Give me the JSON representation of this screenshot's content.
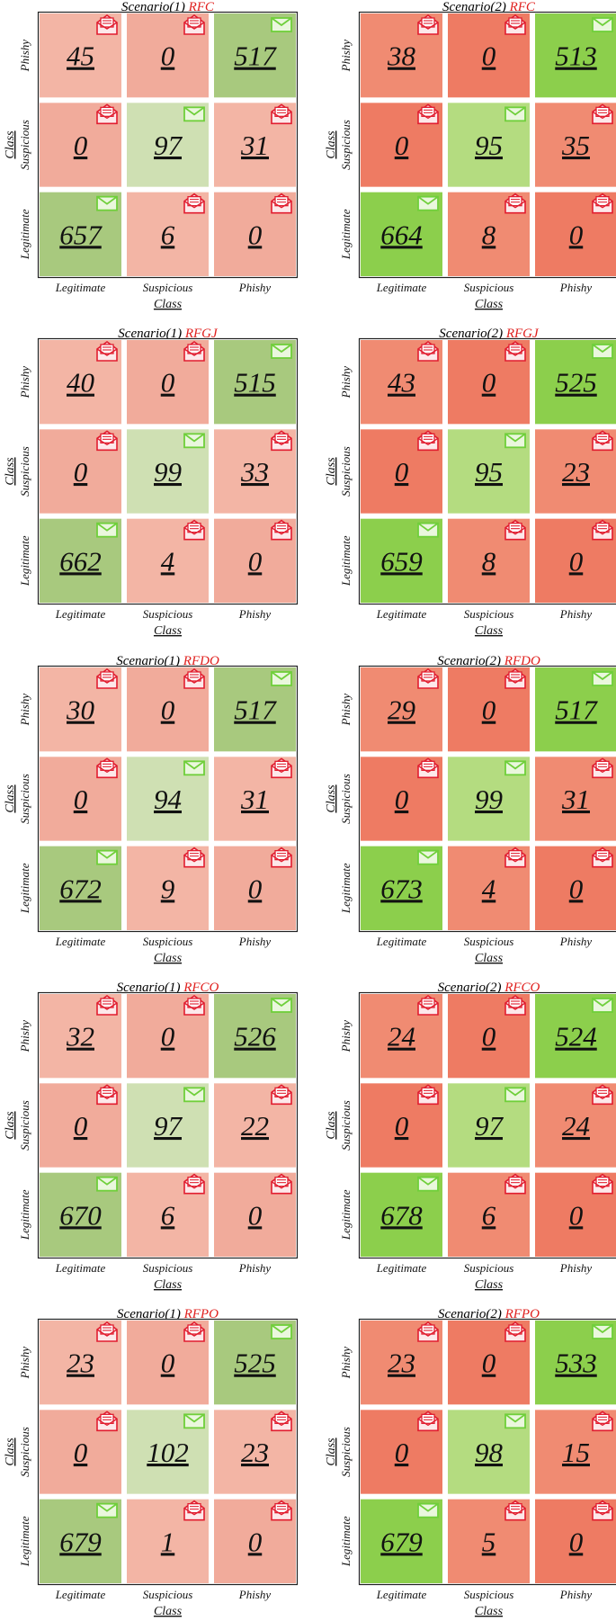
{
  "chart_data": [
    {
      "type": "heatmap",
      "title_prefix": "Scenario(1) ",
      "title_model": "RFC",
      "x_categories": [
        "Legitimate",
        "Suspicious",
        "Phishy"
      ],
      "y_categories": [
        "Phishy",
        "Suspicious",
        "Legitimate"
      ],
      "xlabel": "Class",
      "ylabel": "Class",
      "matrix": [
        [
          45,
          0,
          517
        ],
        [
          0,
          97,
          31
        ],
        [
          657,
          6,
          0
        ]
      ]
    },
    {
      "type": "heatmap",
      "title_prefix": "Scenario(2) ",
      "title_model": "RFC",
      "x_categories": [
        "Legitimate",
        "Suspicious",
        "Phishy"
      ],
      "y_categories": [
        "Phishy",
        "Suspicious",
        "Legitimate"
      ],
      "xlabel": "Class",
      "ylabel": "Class",
      "matrix": [
        [
          38,
          0,
          513
        ],
        [
          0,
          95,
          35
        ],
        [
          664,
          8,
          0
        ]
      ]
    },
    {
      "type": "heatmap",
      "title_prefix": "Scenario(1) ",
      "title_model": "RFGJ",
      "x_categories": [
        "Legitimate",
        "Suspicious",
        "Phishy"
      ],
      "y_categories": [
        "Phishy",
        "Suspicious",
        "Legitimate"
      ],
      "xlabel": "Class",
      "ylabel": "Class",
      "matrix": [
        [
          40,
          0,
          515
        ],
        [
          0,
          99,
          33
        ],
        [
          662,
          4,
          0
        ]
      ]
    },
    {
      "type": "heatmap",
      "title_prefix": "Scenario(2) ",
      "title_model": "RFGJ",
      "x_categories": [
        "Legitimate",
        "Suspicious",
        "Phishy"
      ],
      "y_categories": [
        "Phishy",
        "Suspicious",
        "Legitimate"
      ],
      "xlabel": "Class",
      "ylabel": "Class",
      "matrix": [
        [
          43,
          0,
          525
        ],
        [
          0,
          95,
          23
        ],
        [
          659,
          8,
          0
        ]
      ]
    },
    {
      "type": "heatmap",
      "title_prefix": "Scenario(1) ",
      "title_model": "RFDO",
      "x_categories": [
        "Legitimate",
        "Suspicious",
        "Phishy"
      ],
      "y_categories": [
        "Phishy",
        "Suspicious",
        "Legitimate"
      ],
      "xlabel": "Class",
      "ylabel": "Class",
      "matrix": [
        [
          30,
          0,
          517
        ],
        [
          0,
          94,
          31
        ],
        [
          672,
          9,
          0
        ]
      ]
    },
    {
      "type": "heatmap",
      "title_prefix": "Scenario(2) ",
      "title_model": "RFDO",
      "x_categories": [
        "Legitimate",
        "Suspicious",
        "Phishy"
      ],
      "y_categories": [
        "Phishy",
        "Suspicious",
        "Legitimate"
      ],
      "xlabel": "Class",
      "ylabel": "Class",
      "matrix": [
        [
          29,
          0,
          517
        ],
        [
          0,
          99,
          31
        ],
        [
          673,
          4,
          0
        ]
      ]
    },
    {
      "type": "heatmap",
      "title_prefix": "Scenario(1) ",
      "title_model": "RFCO",
      "x_categories": [
        "Legitimate",
        "Suspicious",
        "Phishy"
      ],
      "y_categories": [
        "Phishy",
        "Suspicious",
        "Legitimate"
      ],
      "xlabel": "Class",
      "ylabel": "Class",
      "matrix": [
        [
          32,
          0,
          526
        ],
        [
          0,
          97,
          22
        ],
        [
          670,
          6,
          0
        ]
      ]
    },
    {
      "type": "heatmap",
      "title_prefix": "Scenario(2) ",
      "title_model": "RFCO",
      "x_categories": [
        "Legitimate",
        "Suspicious",
        "Phishy"
      ],
      "y_categories": [
        "Phishy",
        "Suspicious",
        "Legitimate"
      ],
      "xlabel": "Class",
      "ylabel": "Class",
      "matrix": [
        [
          24,
          0,
          524
        ],
        [
          0,
          97,
          24
        ],
        [
          678,
          6,
          0
        ]
      ]
    },
    {
      "type": "heatmap",
      "title_prefix": "Scenario(1) ",
      "title_model": "RFPO",
      "x_categories": [
        "Legitimate",
        "Suspicious",
        "Phishy"
      ],
      "y_categories": [
        "Phishy",
        "Suspicious",
        "Legitimate"
      ],
      "xlabel": "Class",
      "ylabel": "Class",
      "matrix": [
        [
          23,
          0,
          525
        ],
        [
          0,
          102,
          23
        ],
        [
          679,
          1,
          0
        ]
      ]
    },
    {
      "type": "heatmap",
      "title_prefix": "Scenario(2) ",
      "title_model": "RFPO",
      "x_categories": [
        "Legitimate",
        "Suspicious",
        "Phishy"
      ],
      "y_categories": [
        "Phishy",
        "Suspicious",
        "Legitimate"
      ],
      "xlabel": "Class",
      "ylabel": "Class",
      "matrix": [
        [
          23,
          0,
          533
        ],
        [
          0,
          98,
          15
        ],
        [
          679,
          5,
          0
        ]
      ]
    }
  ],
  "colors": {
    "scenario1": {
      "correct_major": "#a8c97e",
      "correct_minor": "#cfe0b3",
      "wrong_mid": "#f1ab9b",
      "wrong_light": "#f3b5a5"
    },
    "scenario2": {
      "correct_major": "#8ccf4c",
      "correct_minor": "#b4dc80",
      "wrong_mid": "#ee7b63",
      "wrong_light": "#f08b72"
    },
    "title_model": "#e0201e",
    "icon_red": "#e11d2f",
    "icon_green": "#6fcf3a"
  },
  "icons": {
    "correct_cell": "envelope-closed-icon",
    "wrong_cell": "envelope-open-letter-icon"
  }
}
